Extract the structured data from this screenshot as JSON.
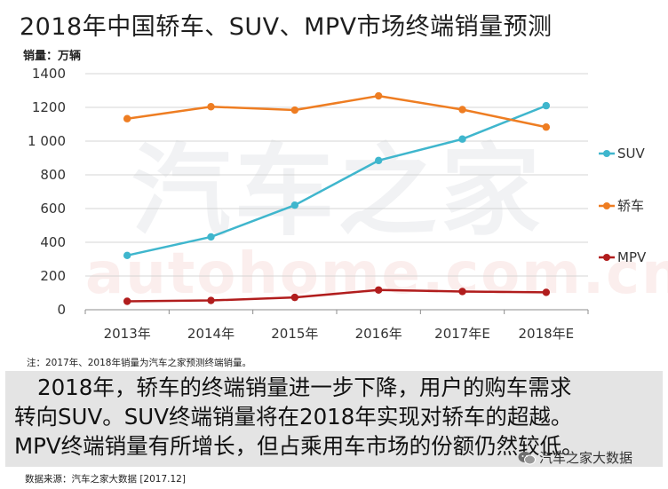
{
  "chart_data": {
    "type": "line",
    "title": "2018年中国轿车、SUV、MPV市场终端销量预测",
    "ylabel": "销量：万辆",
    "xlabel": "",
    "categories": [
      "2013年",
      "2014年",
      "2015年",
      "2016年",
      "2017年E",
      "2018年E"
    ],
    "ylim": [
      0,
      1400
    ],
    "yticks": [
      0,
      200,
      400,
      600,
      800,
      1000,
      1200,
      1400
    ],
    "ytick_labels": [
      "0",
      "200",
      "400",
      "600",
      "800",
      "1 000",
      "1200",
      "1400"
    ],
    "grid": "horizontal",
    "legend_position": "right",
    "series": [
      {
        "name": "SUV",
        "color": "#3fb6cd",
        "values": [
          322,
          432,
          620,
          885,
          1012,
          1210
        ]
      },
      {
        "name": "轿车",
        "color": "#ee7d22",
        "values": [
          1133,
          1204,
          1184,
          1268,
          1187,
          1083
        ]
      },
      {
        "name": "MPV",
        "color": "#b11d1d",
        "values": [
          50,
          55,
          73,
          117,
          108,
          103
        ]
      }
    ]
  },
  "watermark": {
    "cn": "汽车之家",
    "en": "autohome.com.cn"
  },
  "note": "注：2017年、2018年销量为汽车之家预测终端销量。",
  "summary": {
    "line1": "2018年，轿车的终端销量进一步下降，用户的购车需求",
    "line2": "转向SUV。SUV终端销量将在2018年实现对轿车的超越。",
    "line3": "MPV终端销量有所增长，但占乘用车市场的份额仍然较低。"
  },
  "source": "数据来源：汽车之家大数据 [2017.12]",
  "brand": {
    "icon": "wechat-icon",
    "label": "汽车之家大数据"
  }
}
